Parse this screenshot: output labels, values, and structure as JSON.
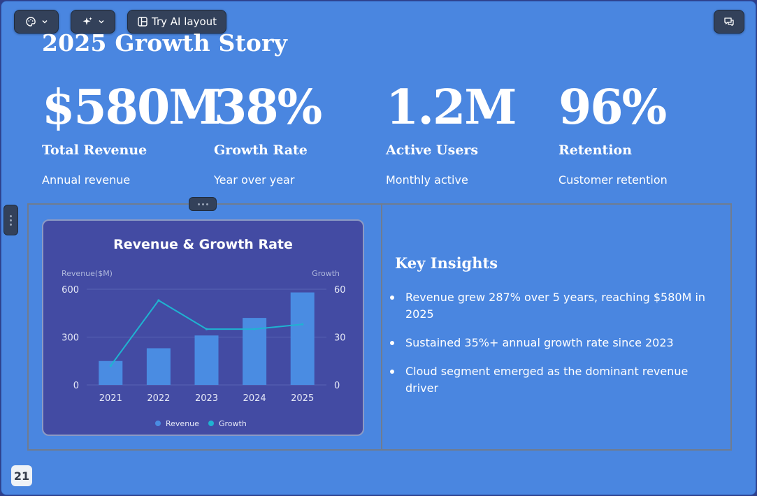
{
  "toolbar": {
    "theme_icon": "palette-icon",
    "ai_icon": "sparkles-icon",
    "layout_icon": "layout-icon",
    "try_ai_layout_label": "Try AI layout",
    "comment_icon": "comment-icon"
  },
  "slide": {
    "title": "2025 Growth Story",
    "page_number": "21",
    "background_color": "#4a86e0",
    "stats": [
      {
        "value": "$580M",
        "label": "Total Revenue",
        "sublabel": "Annual revenue"
      },
      {
        "value": "38%",
        "label": "Growth Rate",
        "sublabel": "Year over year"
      },
      {
        "value": "1.2M",
        "label": "Active Users",
        "sublabel": "Monthly active"
      },
      {
        "value": "96%",
        "label": "Retention",
        "sublabel": "Customer retention"
      }
    ],
    "insights": {
      "title": "Key Insights",
      "items": [
        "Revenue grew 287% over 5 years, reaching $580M in 2025",
        "Sustained 35%+ annual growth rate since 2023",
        "Cloud segment emerged as the dominant revenue driver"
      ]
    }
  },
  "chart_data": {
    "type": "bar",
    "title": "Revenue & Growth Rate",
    "categories": [
      "2021",
      "2022",
      "2023",
      "2024",
      "2025"
    ],
    "y_left_label": "Revenue($M)",
    "y_right_label": "Growth",
    "y_left_ticks": [
      "0",
      "300",
      "600"
    ],
    "y_right_ticks": [
      "0",
      "30",
      "60"
    ],
    "ylim_left": [
      0,
      600
    ],
    "ylim_right": [
      0,
      60
    ],
    "grid": true,
    "legend_position": "bottom",
    "series": [
      {
        "name": "Revenue",
        "type": "bar",
        "axis": "left",
        "color": "#4a8ce2",
        "values": [
          150,
          230,
          310,
          420,
          580
        ]
      },
      {
        "name": "Growth",
        "type": "line",
        "axis": "right",
        "color": "#1fb3d1",
        "values": [
          12,
          53,
          35,
          35,
          38
        ]
      }
    ]
  }
}
